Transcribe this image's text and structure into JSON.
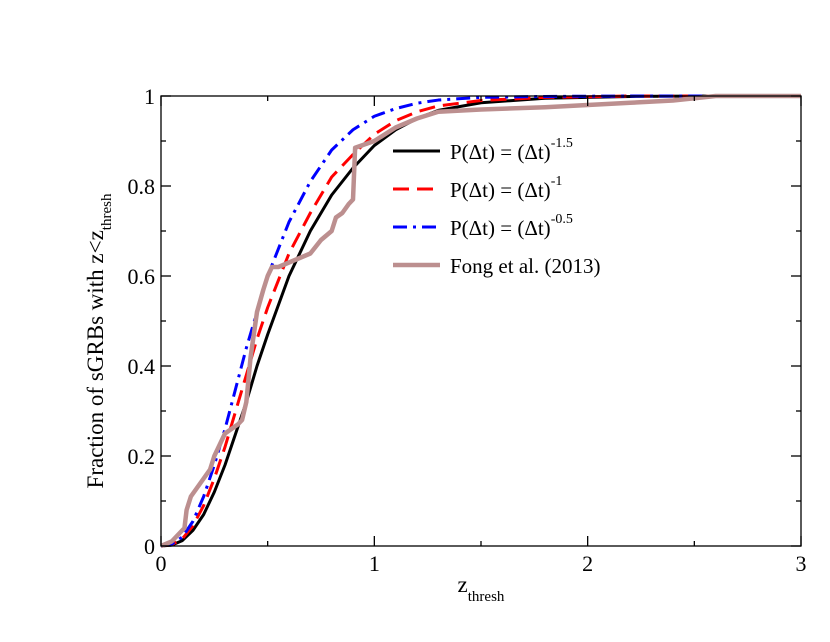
{
  "chart_data": {
    "type": "line",
    "xlabel": "z",
    "xlabel_sub": "thresh",
    "ylabel": "Fraction of sGRBs with z<z",
    "ylabel_sub": "thresh",
    "xlim": [
      0,
      3
    ],
    "ylim": [
      0,
      1
    ],
    "xticks": [
      0,
      1,
      2,
      3
    ],
    "xtick_labels": [
      "0",
      "1",
      "2",
      "3"
    ],
    "yticks": [
      0,
      0.2,
      0.4,
      0.6,
      0.8,
      1
    ],
    "ytick_labels": [
      "0",
      "0.2",
      "0.4",
      "0.6",
      "0.8",
      "1"
    ],
    "grid": false,
    "legend_position": "center-right",
    "series": [
      {
        "name": "P(Δt) = (Δt)",
        "name_sup": "-1.5",
        "color": "#000000",
        "dash": "solid",
        "x": [
          0,
          0.05,
          0.1,
          0.15,
          0.2,
          0.25,
          0.3,
          0.35,
          0.4,
          0.45,
          0.5,
          0.6,
          0.7,
          0.8,
          0.9,
          1.0,
          1.1,
          1.2,
          1.3,
          1.5,
          1.8,
          2.2,
          2.6,
          3.0
        ],
        "y": [
          0,
          0.002,
          0.012,
          0.035,
          0.07,
          0.12,
          0.18,
          0.25,
          0.32,
          0.4,
          0.47,
          0.6,
          0.7,
          0.78,
          0.84,
          0.89,
          0.925,
          0.95,
          0.968,
          0.985,
          0.995,
          0.999,
          1.0,
          1.0
        ]
      },
      {
        "name": "P(Δt) = (Δt)",
        "name_sup": "-1",
        "color": "#ff0000",
        "dash": "dashed",
        "x": [
          0,
          0.05,
          0.1,
          0.15,
          0.2,
          0.25,
          0.3,
          0.35,
          0.4,
          0.45,
          0.5,
          0.6,
          0.7,
          0.8,
          0.9,
          1.0,
          1.1,
          1.2,
          1.3,
          1.5,
          1.8,
          2.2,
          2.6,
          3.0
        ],
        "y": [
          0,
          0.003,
          0.016,
          0.045,
          0.09,
          0.15,
          0.22,
          0.3,
          0.38,
          0.46,
          0.53,
          0.65,
          0.74,
          0.82,
          0.87,
          0.915,
          0.945,
          0.965,
          0.978,
          0.99,
          0.997,
          1.0,
          1.0,
          1.0
        ]
      },
      {
        "name": "P(Δt) = (Δt)",
        "name_sup": "-0.5",
        "color": "#0000ff",
        "dash": "dashdot",
        "x": [
          0,
          0.05,
          0.1,
          0.15,
          0.2,
          0.25,
          0.3,
          0.35,
          0.4,
          0.45,
          0.5,
          0.6,
          0.7,
          0.8,
          0.9,
          1.0,
          1.1,
          1.2,
          1.3,
          1.5,
          1.8,
          2.2,
          2.6,
          3.0
        ],
        "y": [
          0,
          0.004,
          0.02,
          0.055,
          0.11,
          0.18,
          0.26,
          0.35,
          0.44,
          0.52,
          0.6,
          0.72,
          0.81,
          0.88,
          0.925,
          0.955,
          0.972,
          0.984,
          0.991,
          0.997,
          0.999,
          1.0,
          1.0,
          1.0
        ]
      },
      {
        "name": "Fong et al. (2013)",
        "name_sup": "",
        "color": "#bc8f8f",
        "dash": "solid",
        "x": [
          0,
          0.05,
          0.11,
          0.12,
          0.14,
          0.17,
          0.2,
          0.23,
          0.25,
          0.28,
          0.3,
          0.33,
          0.36,
          0.38,
          0.4,
          0.42,
          0.45,
          0.48,
          0.5,
          0.52,
          0.55,
          0.6,
          0.65,
          0.7,
          0.75,
          0.8,
          0.82,
          0.85,
          0.88,
          0.9,
          0.91,
          1.0,
          1.1,
          1.2,
          1.3,
          1.5,
          1.8,
          2.0,
          2.2,
          2.4,
          2.6,
          3.0
        ],
        "y": [
          0,
          0.01,
          0.04,
          0.08,
          0.11,
          0.13,
          0.15,
          0.17,
          0.2,
          0.23,
          0.25,
          0.26,
          0.27,
          0.28,
          0.32,
          0.42,
          0.52,
          0.57,
          0.6,
          0.62,
          0.62,
          0.63,
          0.64,
          0.65,
          0.68,
          0.7,
          0.73,
          0.74,
          0.76,
          0.77,
          0.885,
          0.9,
          0.93,
          0.95,
          0.965,
          0.97,
          0.975,
          0.98,
          0.985,
          0.99,
          1.0,
          1.0
        ]
      }
    ]
  }
}
